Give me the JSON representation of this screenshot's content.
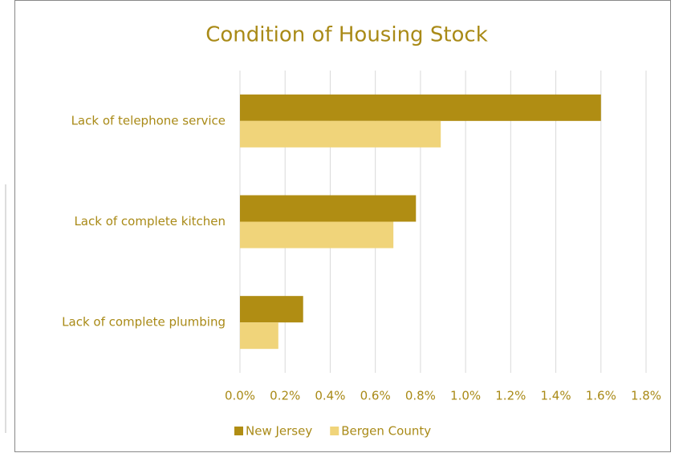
{
  "chart_data": {
    "type": "bar",
    "orientation": "horizontal",
    "title": "Condition of Housing Stock",
    "categories": [
      "Lack of telephone service",
      "Lack of complete kitchen",
      "Lack of complete plumbing"
    ],
    "series": [
      {
        "name": "New Jersey",
        "color": "#b08d13",
        "values": [
          1.6,
          0.78,
          0.28
        ]
      },
      {
        "name": "Bergen County",
        "color": "#f0d47a",
        "values": [
          0.89,
          0.68,
          0.17
        ]
      }
    ],
    "xlim": [
      0,
      1.8
    ],
    "xticks": [
      {
        "value": 0,
        "label": "0.0%"
      },
      {
        "value": 0.2,
        "label": "0.2%"
      },
      {
        "value": 0.4,
        "label": "0.4%"
      },
      {
        "value": 0.6,
        "label": "0.6%"
      },
      {
        "value": 0.8,
        "label": "0.8%"
      },
      {
        "value": 1.0,
        "label": "1.0%"
      },
      {
        "value": 1.2,
        "label": "1.2%"
      },
      {
        "value": 1.4,
        "label": "1.4%"
      },
      {
        "value": 1.6,
        "label": "1.6%"
      },
      {
        "value": 1.8,
        "label": "1.8%"
      }
    ],
    "grid": true,
    "legend": "bottom"
  }
}
